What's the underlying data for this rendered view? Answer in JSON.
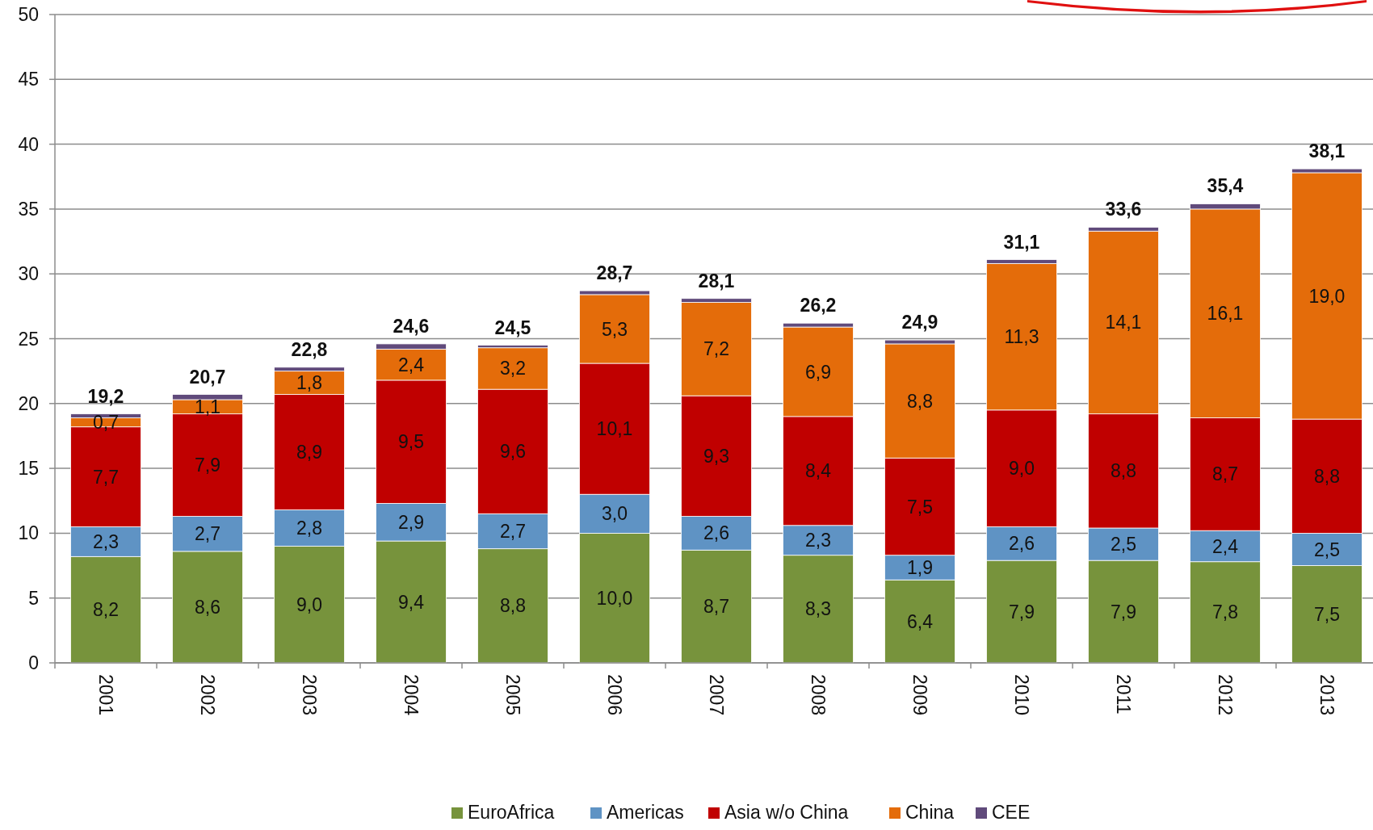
{
  "chart_data": {
    "type": "bar",
    "stacked": true,
    "categories": [
      "2001",
      "2002",
      "2003",
      "2004",
      "2005",
      "2006",
      "2007",
      "2008",
      "2009",
      "2010",
      "2011",
      "2012",
      "2013"
    ],
    "series": [
      {
        "name": "EuroAfrica",
        "color": "#77933c",
        "values": [
          8.2,
          8.6,
          9.0,
          9.4,
          8.8,
          10.0,
          8.7,
          8.3,
          6.4,
          7.9,
          7.9,
          7.8,
          7.5
        ],
        "value_labels": [
          "8,2",
          "8,6",
          "9,0",
          "9,4",
          "8,8",
          "10,0",
          "8,7",
          "8,3",
          "6,4",
          "7,9",
          "7,9",
          "7,8",
          "7,5"
        ]
      },
      {
        "name": "Americas",
        "color": "#5f93c4",
        "values": [
          2.3,
          2.7,
          2.8,
          2.9,
          2.7,
          3.0,
          2.6,
          2.3,
          1.9,
          2.6,
          2.5,
          2.4,
          2.5
        ],
        "value_labels": [
          "2,3",
          "2,7",
          "2,8",
          "2,9",
          "2,7",
          "3,0",
          "2,6",
          "2,3",
          "1,9",
          "2,6",
          "2,5",
          "2,4",
          "2,5"
        ]
      },
      {
        "name": "Asia w/o China",
        "color": "#c00000",
        "values": [
          7.7,
          7.9,
          8.9,
          9.5,
          9.6,
          10.1,
          9.3,
          8.4,
          7.5,
          9.0,
          8.8,
          8.7,
          8.8
        ],
        "value_labels": [
          "7,7",
          "7,9",
          "8,9",
          "9,5",
          "9,6",
          "10,1",
          "9,3",
          "8,4",
          "7,5",
          "9,0",
          "8,8",
          "8,7",
          "8,8"
        ]
      },
      {
        "name": "China",
        "color": "#e46c0a",
        "values": [
          0.7,
          1.1,
          1.8,
          2.4,
          3.2,
          5.3,
          7.2,
          6.9,
          8.8,
          11.3,
          14.1,
          16.1,
          19.0
        ],
        "value_labels": [
          "0,7",
          "1,1",
          "1,8",
          "2,4",
          "3,2",
          "5,3",
          "7,2",
          "6,9",
          "8,8",
          "11,3",
          "14,1",
          "16,1",
          "19,0"
        ]
      },
      {
        "name": "CEE",
        "color": "#604a7b",
        "values": [
          0.3,
          0.4,
          0.3,
          0.4,
          0.2,
          0.3,
          0.3,
          0.3,
          0.3,
          0.3,
          0.3,
          0.4,
          0.3
        ]
      }
    ],
    "totals": [
      "19,2",
      "20,7",
      "22,8",
      "24,6",
      "24,5",
      "28,7",
      "28,1",
      "26,2",
      "24,9",
      "31,1",
      "33,6",
      "35,4",
      "38,1"
    ],
    "ylim": [
      0,
      50
    ],
    "yticks": [
      0,
      5,
      10,
      15,
      20,
      25,
      30,
      35,
      40,
      45,
      50
    ],
    "grid": "y",
    "legend": "bottom"
  }
}
